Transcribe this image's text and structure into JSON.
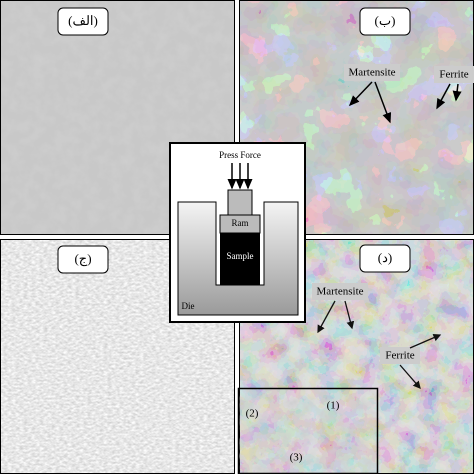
{
  "panels": [
    {
      "label": "(الف)"
    },
    {
      "label": "(ب)",
      "annotations": [
        "Martensite",
        "Ferrite"
      ]
    },
    {
      "label": "(ج)"
    },
    {
      "label": "(د)",
      "annotations": [
        "Martensite",
        "Ferrite"
      ],
      "inset": [
        "(1)",
        "(2)",
        "(3)"
      ]
    }
  ],
  "diagram": {
    "force": "Press Force",
    "ram": "Ram",
    "sample": "Sample",
    "die": "Die"
  }
}
